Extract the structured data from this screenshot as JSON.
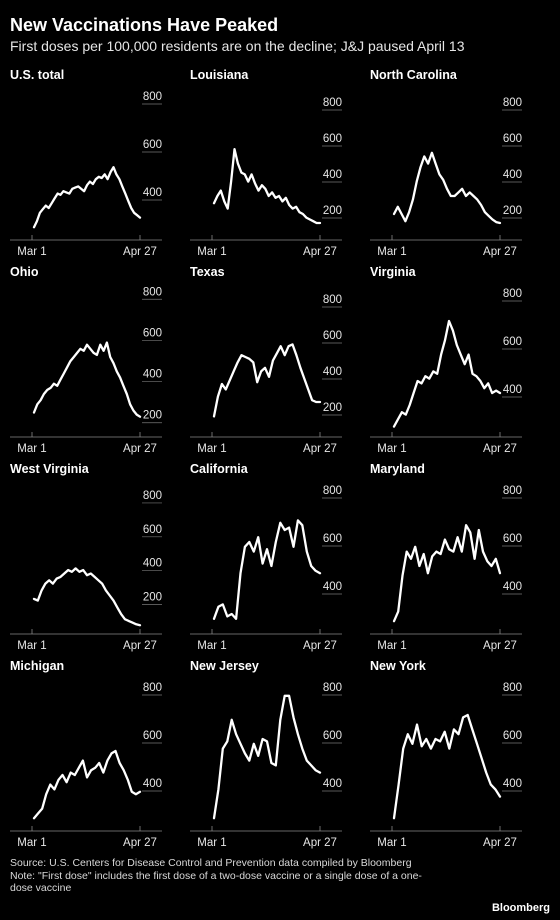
{
  "title": "New Vaccinations Have Peaked",
  "subtitle": "First doses per 100,000 residents are on the decline; J&J paused April 13",
  "source_note": "Source: U.S. Centers for Disease Control and Prevention data compiled by Bloomberg",
  "note": "Note: \"First dose\" includes the first dose of a two-dose vaccine or a single dose of a one-dose vaccine",
  "logo": "Bloomberg",
  "colors": {
    "background": "#000000",
    "line": "#ffffff",
    "text": "#ffffff"
  },
  "chart_data": [
    {
      "type": "line",
      "title": "U.S. total",
      "x_labels": [
        "Mar 1",
        "Apr 27"
      ],
      "yticks": [
        "400",
        "600",
        "800"
      ],
      "ylim": [
        250,
        850
      ],
      "series": [
        {
          "values": [
            270,
            295,
            330,
            345,
            360,
            350,
            370,
            390,
            410,
            405,
            420,
            415,
            410,
            430,
            435,
            440,
            430,
            420,
            445,
            460,
            450,
            470,
            480,
            475,
            490,
            470,
            500,
            520,
            490,
            470,
            440,
            410,
            380,
            350,
            330,
            320,
            310
          ]
        }
      ]
    },
    {
      "type": "line",
      "title": "Louisiana",
      "x_labels": [
        "Mar 1",
        "Apr 27"
      ],
      "yticks": [
        "200",
        "400",
        "600",
        "800"
      ],
      "ylim": [
        100,
        900
      ],
      "series": [
        {
          "values": [
            260,
            300,
            330,
            270,
            230,
            380,
            560,
            480,
            430,
            420,
            380,
            420,
            370,
            330,
            360,
            340,
            300,
            320,
            290,
            300,
            270,
            290,
            250,
            230,
            240,
            210,
            200,
            180,
            170,
            160,
            150,
            150
          ]
        }
      ]
    },
    {
      "type": "line",
      "title": "North Carolina",
      "x_labels": [
        "Mar 1",
        "Apr 27"
      ],
      "yticks": [
        "200",
        "400",
        "600",
        "800"
      ],
      "ylim": [
        100,
        900
      ],
      "series": [
        {
          "values": [
            200,
            240,
            200,
            160,
            210,
            280,
            380,
            460,
            520,
            480,
            540,
            480,
            420,
            390,
            340,
            300,
            300,
            320,
            340,
            300,
            320,
            300,
            280,
            250,
            210,
            190,
            170,
            155,
            150
          ]
        }
      ]
    },
    {
      "type": "line",
      "title": "Ohio",
      "x_labels": [
        "Mar 1",
        "Apr 27"
      ],
      "yticks": [
        "200",
        "400",
        "600",
        "800"
      ],
      "ylim": [
        150,
        850
      ],
      "series": [
        {
          "values": [
            230,
            270,
            290,
            320,
            340,
            350,
            370,
            360,
            390,
            420,
            450,
            480,
            500,
            520,
            540,
            530,
            560,
            540,
            520,
            510,
            560,
            530,
            570,
            500,
            470,
            430,
            400,
            360,
            320,
            270,
            240,
            220,
            210
          ]
        }
      ]
    },
    {
      "type": "line",
      "title": "Texas",
      "x_labels": [
        "Mar 1",
        "Apr 27"
      ],
      "yticks": [
        "200",
        "400",
        "600",
        "800"
      ],
      "ylim": [
        100,
        900
      ],
      "series": [
        {
          "values": [
            170,
            280,
            350,
            320,
            370,
            420,
            470,
            510,
            500,
            490,
            470,
            360,
            420,
            440,
            390,
            480,
            520,
            560,
            510,
            560,
            570,
            510,
            440,
            380,
            320,
            260,
            250,
            250
          ]
        }
      ]
    },
    {
      "type": "line",
      "title": "Virginia",
      "x_labels": [
        "Mar 1",
        "Apr 27"
      ],
      "yticks": [
        "400",
        "600",
        "800"
      ],
      "ylim": [
        250,
        850
      ],
      "series": [
        {
          "values": [
            260,
            290,
            320,
            310,
            350,
            400,
            450,
            440,
            470,
            460,
            490,
            480,
            560,
            620,
            700,
            660,
            600,
            560,
            520,
            560,
            480,
            470,
            450,
            420,
            440,
            400,
            410,
            400
          ]
        }
      ]
    },
    {
      "type": "line",
      "title": "West Virginia",
      "x_labels": [
        "Mar 1",
        "Apr 27"
      ],
      "yticks": [
        "200",
        "400",
        "600",
        "800"
      ],
      "ylim": [
        50,
        900
      ],
      "series": [
        {
          "values": [
            210,
            200,
            260,
            300,
            320,
            300,
            330,
            340,
            360,
            380,
            370,
            390,
            370,
            380,
            350,
            360,
            340,
            320,
            300,
            260,
            230,
            200,
            160,
            120,
            90,
            80,
            70,
            60,
            55
          ]
        }
      ]
    },
    {
      "type": "line",
      "title": "California",
      "x_labels": [
        "Mar 1",
        "Apr 27"
      ],
      "yticks": [
        "400",
        "600",
        "800"
      ],
      "ylim": [
        250,
        850
      ],
      "series": [
        {
          "values": [
            280,
            330,
            340,
            290,
            300,
            280,
            470,
            580,
            600,
            560,
            620,
            510,
            570,
            500,
            600,
            680,
            650,
            660,
            580,
            690,
            670,
            560,
            500,
            480,
            470
          ]
        }
      ]
    },
    {
      "type": "line",
      "title": "Maryland",
      "x_labels": [
        "Mar 1",
        "Apr 27"
      ],
      "yticks": [
        "400",
        "600",
        "800"
      ],
      "ylim": [
        250,
        850
      ],
      "series": [
        {
          "values": [
            270,
            310,
            460,
            560,
            530,
            580,
            500,
            550,
            470,
            540,
            560,
            550,
            610,
            570,
            560,
            620,
            560,
            670,
            640,
            530,
            650,
            560,
            520,
            500,
            530,
            470
          ]
        }
      ]
    },
    {
      "type": "line",
      "title": "Michigan",
      "x_labels": [
        "Mar 1",
        "Apr 27"
      ],
      "yticks": [
        "400",
        "600",
        "800"
      ],
      "ylim": [
        250,
        850
      ],
      "series": [
        {
          "values": [
            270,
            290,
            310,
            370,
            410,
            390,
            430,
            450,
            420,
            460,
            450,
            480,
            510,
            440,
            470,
            480,
            500,
            460,
            510,
            540,
            550,
            500,
            470,
            430,
            380,
            370,
            380
          ]
        }
      ]
    },
    {
      "type": "line",
      "title": "New Jersey",
      "x_labels": [
        "Mar 1",
        "Apr 27"
      ],
      "yticks": [
        "400",
        "600",
        "800"
      ],
      "ylim": [
        250,
        850
      ],
      "series": [
        {
          "values": [
            270,
            390,
            560,
            590,
            680,
            620,
            580,
            540,
            510,
            580,
            530,
            600,
            590,
            500,
            490,
            680,
            780,
            780,
            690,
            620,
            560,
            510,
            490,
            470,
            460
          ]
        }
      ]
    },
    {
      "type": "line",
      "title": "New York",
      "x_labels": [
        "Mar 1",
        "Apr 27"
      ],
      "yticks": [
        "400",
        "600",
        "800"
      ],
      "ylim": [
        250,
        850
      ],
      "series": [
        {
          "values": [
            270,
            410,
            560,
            620,
            580,
            660,
            570,
            600,
            560,
            600,
            590,
            630,
            560,
            640,
            620,
            690,
            700,
            640,
            580,
            520,
            460,
            410,
            390,
            360
          ]
        }
      ]
    }
  ]
}
